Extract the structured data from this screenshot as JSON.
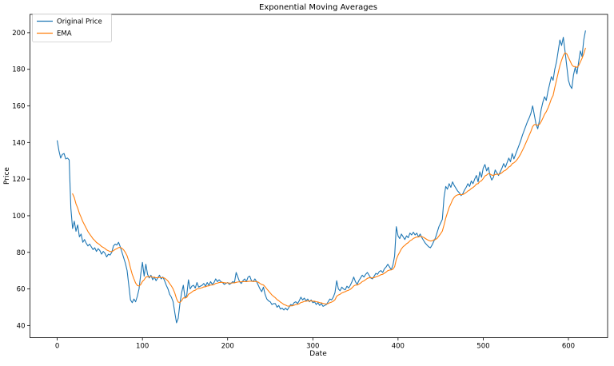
{
  "figure": {
    "title": "Exponential Moving Averages",
    "background": "#ffffff"
  },
  "chart_data": {
    "type": "line",
    "title": "Exponential Moving Averages",
    "xlabel": "Date",
    "ylabel": "Price",
    "grid": false,
    "x_ticks": [
      0,
      100,
      200,
      300,
      400,
      500,
      600
    ],
    "y_ticks": [
      40,
      60,
      80,
      100,
      120,
      140,
      160,
      180,
      200
    ],
    "xlim": [
      -32,
      646
    ],
    "ylim": [
      33.4,
      210
    ],
    "legend": {
      "position": "upper-left",
      "entries": [
        {
          "label": "Original Price",
          "color": "#1f77b4"
        },
        {
          "label": "EMA",
          "color": "#ff7f0e"
        }
      ]
    },
    "series": [
      {
        "name": "Original Price",
        "color": "#1f77b4",
        "x0": 0,
        "dx": 2,
        "values": [
          141,
          135.5,
          131.5,
          133.5,
          134,
          131,
          131.5,
          130.5,
          104,
          93,
          97,
          91.5,
          95,
          88.5,
          90,
          85.5,
          87,
          85,
          83.5,
          84.5,
          83,
          81.5,
          82.5,
          80.5,
          82,
          81,
          79,
          80.5,
          79.5,
          77.5,
          79,
          78.5,
          80,
          83.5,
          84.5,
          84,
          85.5,
          83,
          80,
          77,
          74,
          70,
          62,
          54,
          52.5,
          54.5,
          53,
          56,
          60,
          68,
          74.5,
          67,
          73.5,
          68,
          66,
          67.5,
          65,
          66.5,
          64.5,
          66,
          67.5,
          65.5,
          66.5,
          64.5,
          62,
          60,
          57,
          55.5,
          53,
          47,
          41.5,
          44,
          52,
          58,
          62,
          55,
          56.5,
          65,
          60,
          61.5,
          62,
          60.5,
          63.5,
          61,
          61.5,
          62,
          63,
          61.5,
          63.5,
          62,
          64,
          62.5,
          63.5,
          65.5,
          64,
          65,
          64,
          63.5,
          62.5,
          63,
          63.5,
          62.5,
          63,
          64,
          63.5,
          69,
          66.5,
          64,
          63,
          64.5,
          65.5,
          64,
          66.5,
          67,
          64.5,
          64,
          65.5,
          64,
          62,
          60,
          58.5,
          61,
          57,
          54.5,
          53.5,
          53,
          51.5,
          52,
          52,
          50,
          51,
          49,
          49.5,
          48.5,
          49.5,
          48.5,
          50,
          51.5,
          51,
          52.5,
          53,
          52,
          53.5,
          55.5,
          54,
          55,
          53.5,
          54.5,
          53,
          54,
          52.5,
          53,
          51.5,
          52.5,
          51,
          52,
          50.5,
          51,
          51.5,
          53,
          54.5,
          54,
          55.5,
          58,
          64.5,
          60,
          59,
          61,
          60,
          59.5,
          61.5,
          60.5,
          62,
          64,
          66.5,
          64,
          62.5,
          64.5,
          66,
          67.5,
          66.5,
          68,
          69,
          67.5,
          66,
          65.5,
          67,
          68.5,
          68,
          69.5,
          70,
          69,
          71,
          72,
          73.5,
          72,
          70.5,
          73,
          78,
          94,
          89,
          87.5,
          90,
          88.5,
          87,
          89,
          88,
          90.5,
          89.5,
          91,
          89.5,
          90.5,
          88.5,
          90,
          88,
          86.5,
          85,
          84,
          83,
          82.5,
          84,
          86,
          88,
          91,
          94,
          96,
          98,
          110,
          116,
          114.5,
          117.5,
          115.5,
          118.5,
          116.5,
          115,
          113.5,
          112.5,
          111,
          112,
          114,
          115.5,
          117.5,
          116,
          119,
          117.5,
          120,
          122,
          118.5,
          124,
          121,
          126,
          128,
          124.5,
          126.5,
          122,
          119.5,
          121,
          125,
          123.5,
          122,
          124,
          126,
          128.5,
          126.5,
          129,
          131.5,
          129.5,
          134,
          131,
          133.5,
          136,
          138.5,
          141,
          144,
          146.5,
          149,
          151.5,
          153.5,
          156,
          160,
          155,
          150,
          147.5,
          152,
          158,
          162,
          165,
          163,
          168,
          172,
          176,
          174,
          180,
          184,
          190,
          196,
          193,
          197.5,
          190,
          182,
          174,
          171,
          169.5,
          177,
          181,
          177.5,
          184,
          190,
          187,
          196,
          201
        ]
      },
      {
        "name": "EMA",
        "color": "#ff7f0e",
        "x0": 18,
        "dx": 2,
        "values": [
          112,
          109.9,
          106.5,
          104.2,
          101.3,
          99.2,
          96.8,
          95,
          93.2,
          91.4,
          90,
          88.7,
          87.4,
          86.5,
          85.4,
          84.8,
          84.1,
          83.2,
          82.7,
          82.1,
          81.3,
          80.9,
          80.4,
          80.4,
          80.9,
          81.6,
          82,
          82.6,
          82.7,
          82.2,
          81.3,
          79.9,
          78.1,
          75.2,
          71.4,
          68,
          65.5,
          63.2,
          61.9,
          61.6,
          62.4,
          64.1,
          65,
          66.5,
          66.7,
          66.6,
          66.8,
          66.4,
          66.4,
          66.1,
          66.1,
          66.3,
          66.2,
          66.2,
          65.9,
          65.2,
          64.3,
          62.9,
          61.6,
          60,
          57.7,
          54.7,
          52.8,
          52.6,
          53.6,
          55.1,
          55.1,
          55.4,
          57.1,
          57.6,
          58.3,
          59,
          59.3,
          60,
          60.2,
          60.4,
          60.7,
          61.1,
          61.2,
          61.6,
          61.7,
          62.1,
          62.2,
          62.4,
          63,
          63.2,
          63.5,
          63.6,
          63.6,
          63.4,
          63.3,
          63.3,
          63.2,
          63.2,
          63.3,
          63.3,
          63.6,
          63.8,
          63.9,
          63.9,
          64,
          64,
          64,
          64.1,
          64.2,
          64.2,
          64.1,
          64.1,
          64,
          63.7,
          63,
          62.4,
          62.2,
          61.2,
          60,
          58.9,
          57.8,
          56.7,
          55.9,
          55.2,
          54.2,
          53.6,
          52.8,
          52.2,
          51.5,
          51.2,
          50.7,
          50.6,
          50.8,
          50.8,
          51.1,
          51.5,
          51.6,
          51.9,
          52.6,
          52.8,
          53.2,
          53.3,
          53.5,
          53.4,
          53.5,
          53.3,
          53.3,
          53,
          52.9,
          52.5,
          52.4,
          52.1,
          51.9,
          51.8,
          52,
          52.5,
          52.8,
          53.3,
          54.1,
          56,
          56.7,
          57.1,
          57.8,
          58.2,
          58.5,
          59,
          59.3,
          59.8,
          60.6,
          61.6,
          62.1,
          62.1,
          62.6,
          63.2,
          64,
          64.4,
          65.1,
          65.8,
          66.1,
          66.1,
          66,
          66.2,
          66.6,
          66.9,
          67.3,
          67.8,
          68,
          68.6,
          69.2,
          70,
          70.3,
          70.4,
          70.8,
          72.1,
          76.1,
          78.4,
          80.1,
          81.9,
          83.1,
          83.8,
          84.7,
          85.3,
          86.3,
          86.8,
          87.6,
          88,
          88.4,
          88.4,
          88.7,
          88.6,
          88.2,
          87.6,
          87,
          86.5,
          86.2,
          86.3,
          86.8,
          87,
          87.7,
          88.9,
          90.2,
          91.6,
          94.9,
          98.7,
          101.6,
          104.5,
          106.5,
          108.7,
          110.1,
          111,
          111.4,
          111.6,
          111.5,
          111.6,
          112,
          112.7,
          113.5,
          114,
          114.9,
          115.4,
          116.2,
          117.3,
          117.5,
          118.7,
          119.1,
          120.3,
          121.7,
          122.2,
          123,
          122.8,
          122.2,
          122,
          122.5,
          122.7,
          122.6,
          122.9,
          123.5,
          124.4,
          124.8,
          125.6,
          126.6,
          127.1,
          128.4,
          128.9,
          129.7,
          130.8,
          132.2,
          133.8,
          135.7,
          137.6,
          139.7,
          141.8,
          144,
          146.1,
          148.7,
          149.8,
          149.8,
          149.4,
          149.9,
          151.4,
          153.3,
          155.4,
          156.8,
          158.8,
          161.2,
          163.9,
          165.7,
          170,
          174,
          178,
          182,
          185,
          187.5,
          189,
          188.5,
          186.5,
          184.5,
          182.5,
          181.5,
          181.5,
          181,
          182,
          184,
          186,
          188.5,
          191.5
        ]
      }
    ]
  }
}
